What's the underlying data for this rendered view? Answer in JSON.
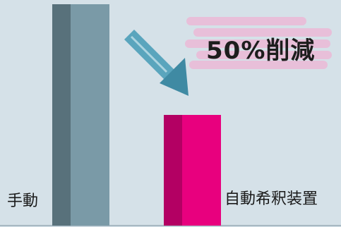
{
  "chart_data": {
    "type": "bar",
    "categories": [
      "手動",
      "自動希釈装置"
    ],
    "values": [
      100,
      50
    ],
    "annotation": "50%削減",
    "ylim": [
      0,
      100
    ],
    "grid": false,
    "colors": {
      "manual_front": "#7a9aa7",
      "manual_side": "#58717b",
      "auto_front": "#e8007e",
      "auto_side": "#b30063",
      "arrow": "#5aa5bd",
      "highlight": "#ecb6d5",
      "background": "#d5e1e8"
    }
  }
}
